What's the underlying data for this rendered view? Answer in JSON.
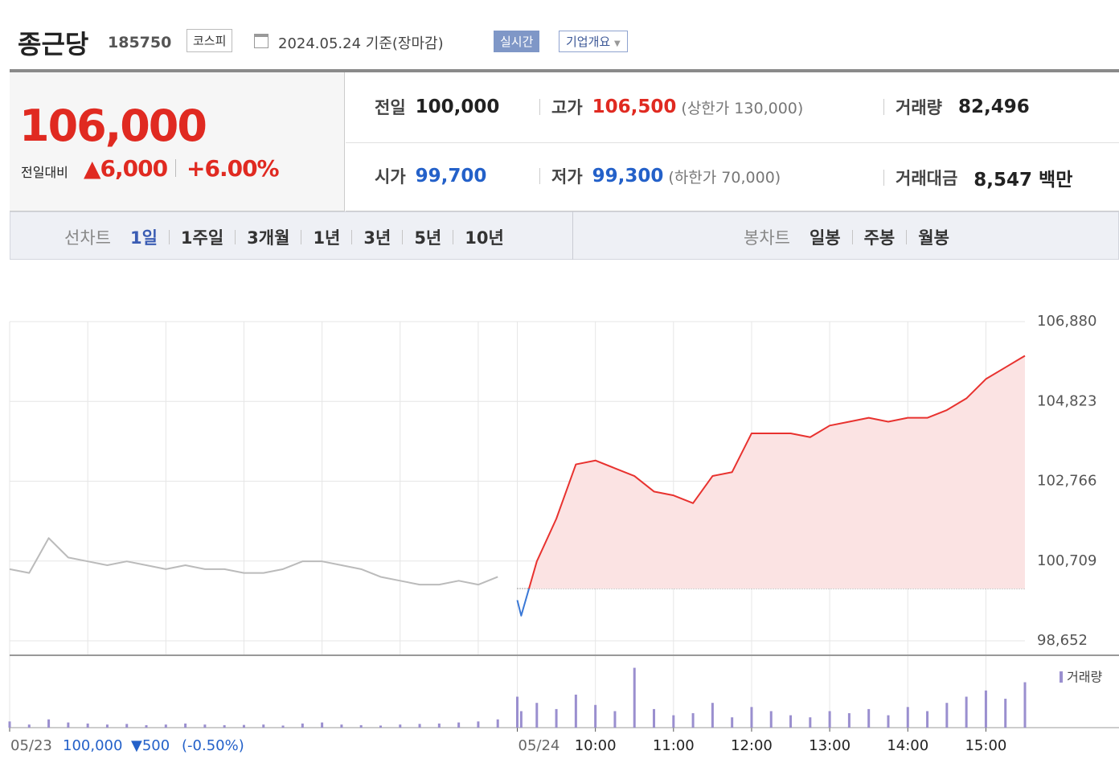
{
  "header": {
    "name": "종근당",
    "code": "185750",
    "market": "코스피",
    "date": "2024.05.24 기준(장마감)",
    "realtime": "실시간",
    "company": "기업개요"
  },
  "quote": {
    "price": "106,000",
    "change_label": "전일대비",
    "change": "▲6,000",
    "change_pct": "+6.00%"
  },
  "stats": [
    [
      {
        "label": "전일",
        "value": "100,000"
      },
      {
        "label": "고가",
        "value": "106,500",
        "note": "(상한가 130,000)"
      },
      {
        "label": "거래량",
        "value": "82,496"
      }
    ],
    [
      {
        "label": "시가",
        "value": "99,700"
      },
      {
        "label": "저가",
        "value": "99,300",
        "note": "(하한가 70,000)"
      },
      {
        "label": "거래대금",
        "value": "8,547 백만"
      }
    ]
  ],
  "tabs": {
    "line_label": "선차트",
    "periods": [
      "1일",
      "1주일",
      "3개월",
      "1년",
      "3년",
      "5년",
      "10년"
    ],
    "candle_label": "봉차트",
    "candles": [
      "일봉",
      "주봉",
      "월봉"
    ]
  },
  "footer": {
    "prev_close": "100,000",
    "prev_change": "▼500",
    "prev_pct": "(-0.50%)"
  },
  "chart_data": [
    {
      "type": "line",
      "x": [
        -6.5,
        -6.25,
        -6,
        -5.75,
        -5.5,
        -5.25,
        -5,
        -4.75,
        -4.5,
        -4.25,
        -4,
        -3.75,
        -3.5,
        -3.25,
        -3,
        -2.75,
        -2.5,
        -2.25,
        -2,
        -1.75,
        -1.5,
        -1.25,
        -1,
        -0.75,
        -0.5,
        -0.25,
        0,
        0.05,
        0.25,
        0.5,
        0.75,
        1,
        1.25,
        1.5,
        1.75,
        2,
        2.25,
        2.5,
        2.75,
        3,
        3.25,
        3.5,
        3.75,
        4,
        4.25,
        4.5,
        4.75,
        5,
        5.25,
        5.5,
        5.75,
        6,
        6.25,
        6.5
      ],
      "series": [
        {
          "color": "#bbbbbb",
          "values": [
            100500,
            100400,
            101300,
            100800,
            100700,
            100600,
            100700,
            100600,
            100500,
            100600,
            100500,
            100500,
            100400,
            100400,
            100500,
            100700,
            100700,
            100600,
            100500,
            100300,
            100200,
            100100,
            100100,
            100200,
            100100,
            100300,
            null,
            null,
            null,
            null,
            null,
            null,
            null,
            null,
            null,
            null,
            null,
            null,
            null,
            null,
            null,
            null,
            null,
            null,
            null,
            null,
            null,
            null,
            null,
            null,
            null,
            null,
            null,
            null
          ]
        },
        {
          "color": "#e8322f",
          "color_below": "#3a78d6",
          "fill": "#fbe3e3",
          "values": [
            null,
            null,
            null,
            null,
            null,
            null,
            null,
            null,
            null,
            null,
            null,
            null,
            null,
            null,
            null,
            null,
            null,
            null,
            null,
            null,
            null,
            null,
            null,
            null,
            null,
            null,
            99700,
            99300,
            100700,
            101800,
            103200,
            103300,
            103100,
            102900,
            102500,
            102400,
            102200,
            102900,
            103000,
            104000,
            104000,
            104000,
            103900,
            104200,
            104300,
            104400,
            104300,
            104400,
            104400,
            104600,
            104900,
            105400,
            105700,
            106000
          ]
        }
      ],
      "baseline": 100000,
      "xlim": [
        -6.5,
        6.5
      ],
      "ylim": [
        98652,
        106880
      ],
      "yticks": [
        {
          "value": 106880,
          "label": "106,880"
        },
        {
          "value": 104823,
          "label": "104,823"
        },
        {
          "value": 102766,
          "label": "102,766"
        },
        {
          "value": 100709,
          "label": "100,709"
        },
        {
          "value": 98652,
          "label": "98,652"
        }
      ],
      "xticks": [
        {
          "value": -6.5,
          "label": "05/23"
        },
        {
          "value": 0,
          "label": "05/24"
        },
        {
          "value": 1,
          "label": "10:00"
        },
        {
          "value": 2,
          "label": "11:00"
        },
        {
          "value": 3,
          "label": "12:00"
        },
        {
          "value": 4,
          "label": "13:00"
        },
        {
          "value": 5,
          "label": "14:00"
        },
        {
          "value": 6,
          "label": "15:00"
        }
      ],
      "minor_xticks": [
        -5.5,
        -4.5,
        -3.5,
        -2.5,
        -1.5,
        -0.5
      ],
      "grid": true
    },
    {
      "type": "bar",
      "x": [
        -6.5,
        -6.25,
        -6,
        -5.75,
        -5.5,
        -5.25,
        -5,
        -4.75,
        -4.5,
        -4.25,
        -4,
        -3.75,
        -3.5,
        -3.25,
        -3,
        -2.75,
        -2.5,
        -2.25,
        -2,
        -1.75,
        -1.5,
        -1.25,
        -1,
        -0.75,
        -0.5,
        -0.25,
        0,
        0.05,
        0.25,
        0.5,
        0.75,
        1,
        1.25,
        1.5,
        1.75,
        2,
        2.25,
        2.5,
        2.75,
        3,
        3.25,
        3.5,
        3.75,
        4,
        4.25,
        4.5,
        4.75,
        5,
        5.25,
        5.5,
        5.75,
        6,
        6.25,
        6.5
      ],
      "series": [
        {
          "name": "거래량",
          "color": "#9a8fcf",
          "values": [
            300,
            150,
            400,
            250,
            200,
            150,
            180,
            120,
            150,
            200,
            150,
            120,
            130,
            150,
            100,
            200,
            250,
            150,
            120,
            100,
            150,
            180,
            200,
            250,
            300,
            400,
            1500,
            800,
            1200,
            900,
            1600,
            1100,
            800,
            2900,
            900,
            600,
            700,
            1200,
            500,
            1000,
            800,
            600,
            500,
            800,
            700,
            900,
            600,
            1000,
            800,
            1200,
            1500,
            1800,
            1400,
            2200
          ]
        }
      ],
      "xlim": [
        -6.5,
        6.5
      ],
      "ylim": [
        0,
        3000
      ]
    }
  ]
}
